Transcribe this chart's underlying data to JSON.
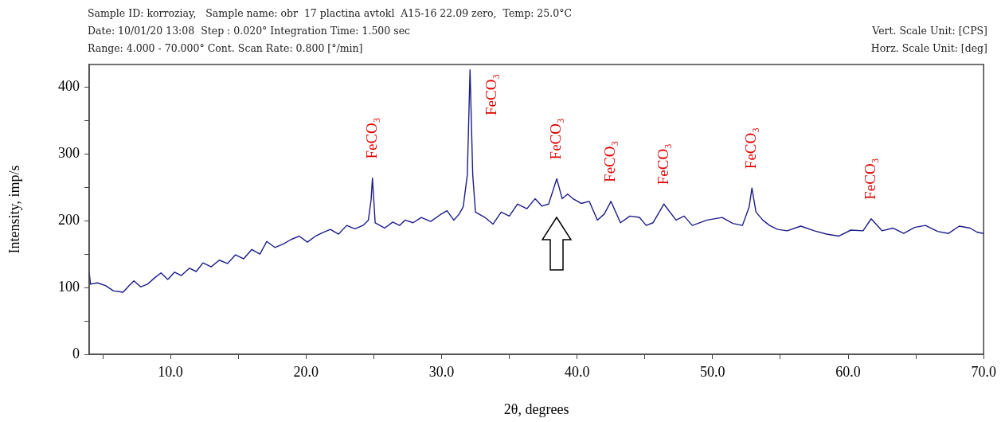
{
  "chart_data": {
    "type": "line",
    "xlabel": "2θ, degrees",
    "ylabel": "Intensity, imp/s",
    "annotations": [
      "Sample ID: korroziay,   Sample name: obr  17 plactina avtokl  A15-16 22.09 zero,  Temp: 25.0°C",
      "Date: 10/01/20 13:08  Step : 0.020° Integration Time: 1.500 sec",
      "Range: 4.000 - 70.000° Cont. Scan Rate: 0.800 [°/min]",
      "Vert. Scale Unit: [CPS]",
      "Horz. Scale Unit: [deg]",
      {
        "text": "FeCO₃",
        "x": 24.9,
        "y": 264
      },
      {
        "text": "FeCO₃",
        "x": 32.1,
        "y": 426
      },
      {
        "text": "FeCO₃",
        "x": 38.5,
        "y": 263
      },
      {
        "text": "FeCO₃",
        "x": 42.5,
        "y": 229
      },
      {
        "text": "FeCO₃",
        "x": 46.4,
        "y": 225
      },
      {
        "text": "FeCO₃",
        "x": 52.9,
        "y": 249
      },
      {
        "text": "FeCO₃",
        "x": 61.7,
        "y": 203
      }
    ],
    "series": [
      {
        "color": "#1c1c8a",
        "x": [
          4.0,
          4.1,
          4.6,
          5.2,
          5.8,
          6.5,
          7.0,
          7.3,
          7.8,
          8.3,
          8.8,
          9.3,
          9.8,
          10.3,
          10.8,
          11.4,
          11.9,
          12.4,
          13.0,
          13.6,
          14.2,
          14.8,
          15.4,
          16.0,
          16.6,
          17.1,
          17.7,
          18.3,
          18.9,
          19.5,
          20.1,
          20.7,
          21.2,
          21.8,
          22.4,
          23.0,
          23.6,
          24.2,
          24.6,
          24.8,
          24.9,
          25.0,
          25.1,
          25.8,
          26.4,
          26.9,
          27.3,
          27.9,
          28.5,
          29.2,
          29.9,
          30.4,
          30.9,
          31.3,
          31.6,
          31.9,
          32.1,
          32.3,
          32.5,
          33.2,
          33.8,
          34.4,
          35.0,
          35.6,
          36.3,
          36.9,
          37.4,
          37.9,
          38.5,
          38.9,
          39.3,
          39.7,
          40.3,
          40.9,
          41.5,
          42.0,
          42.5,
          43.2,
          43.9,
          44.6,
          45.1,
          45.6,
          46.4,
          47.3,
          47.9,
          48.5,
          49.6,
          50.7,
          51.5,
          52.2,
          52.7,
          52.9,
          53.2,
          53.7,
          54.2,
          54.8,
          55.5,
          56.5,
          57.5,
          58.4,
          59.3,
          60.2,
          61.1,
          61.7,
          62.5,
          63.3,
          64.1,
          64.9,
          65.7,
          66.6,
          67.4,
          68.2,
          69.0,
          69.5,
          70.0
        ],
        "values": [
          123,
          105,
          107,
          103,
          95,
          93,
          104,
          110,
          101,
          105,
          114,
          122,
          112,
          123,
          118,
          129,
          124,
          137,
          131,
          141,
          136,
          149,
          143,
          157,
          150,
          169,
          160,
          165,
          172,
          177,
          168,
          177,
          182,
          187,
          180,
          193,
          188,
          193,
          201,
          231,
          264,
          231,
          197,
          189,
          198,
          193,
          201,
          197,
          205,
          199,
          209,
          215,
          201,
          210,
          221,
          269,
          426,
          269,
          213,
          205,
          195,
          213,
          207,
          225,
          218,
          233,
          222,
          225,
          263,
          233,
          240,
          233,
          226,
          229,
          201,
          210,
          229,
          197,
          207,
          205,
          193,
          197,
          225,
          201,
          207,
          193,
          201,
          205,
          196,
          193,
          221,
          249,
          213,
          201,
          193,
          187,
          185,
          192,
          185,
          180,
          177,
          186,
          185,
          203,
          185,
          189,
          181,
          190,
          193,
          184,
          181,
          192,
          189,
          183,
          181
        ]
      }
    ],
    "xlim": [
      4,
      70
    ],
    "xticks": [
      {
        "value": 5,
        "label": null
      },
      {
        "value": 10,
        "label": "10.0"
      },
      {
        "value": 15,
        "label": null
      },
      {
        "value": 20,
        "label": "20.0"
      },
      {
        "value": 25,
        "label": null
      },
      {
        "value": 30,
        "label": "30.0"
      },
      {
        "value": 35,
        "label": null
      },
      {
        "value": 40,
        "label": "40.0"
      },
      {
        "value": 45,
        "label": null
      },
      {
        "value": 50,
        "label": "50.0"
      },
      {
        "value": 55,
        "label": null
      },
      {
        "value": 60,
        "label": "60.0"
      },
      {
        "value": 65,
        "label": null
      },
      {
        "value": 70,
        "label": "70.0"
      }
    ],
    "ylim": [
      0,
      434
    ],
    "yticks": [
      0,
      {
        "value": 50,
        "label": null
      },
      100,
      {
        "value": 150,
        "label": null
      },
      200,
      {
        "value": 250,
        "label": null
      },
      300,
      {
        "value": 350,
        "label": null
      },
      400
    ],
    "marker": "none",
    "line_style": "solid"
  }
}
